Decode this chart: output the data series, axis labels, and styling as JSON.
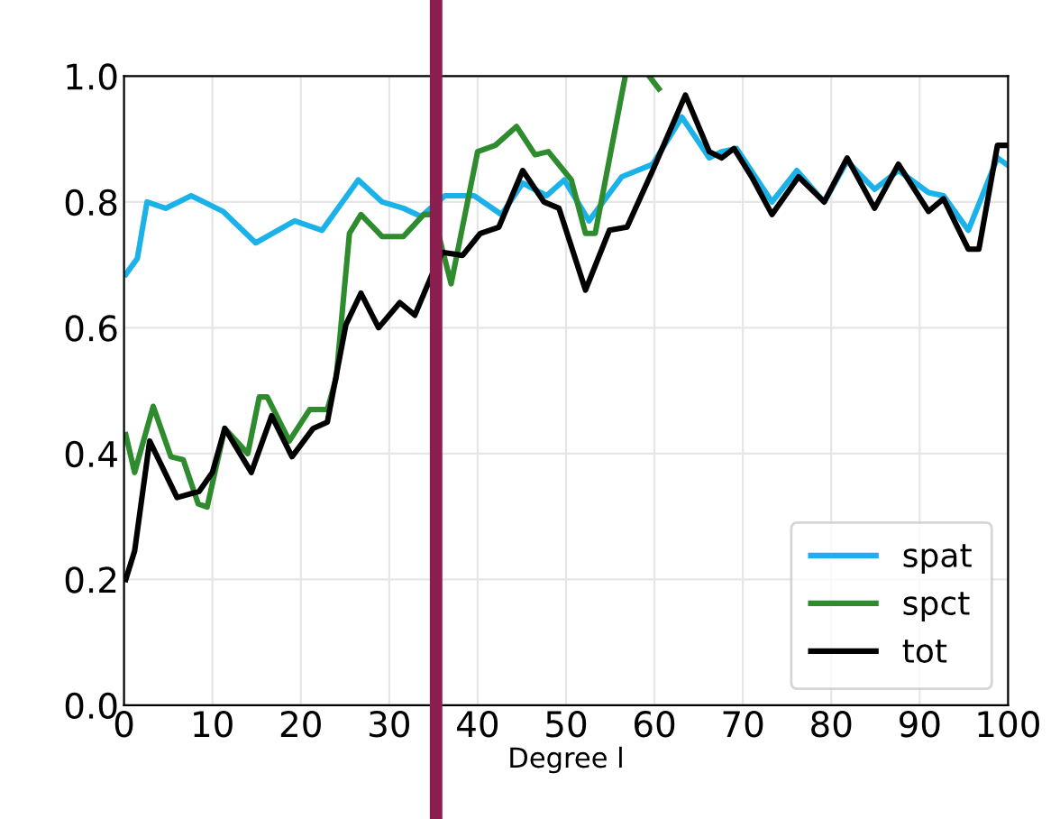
{
  "chart_data": {
    "type": "line",
    "xlabel": "Degree l",
    "xlim": [
      0,
      100
    ],
    "ylim": [
      0,
      1
    ],
    "xticks": [
      0,
      10,
      20,
      30,
      40,
      50,
      60,
      70,
      80,
      90,
      100
    ],
    "yticks": [
      {
        "value": 0,
        "label": "0.0"
      },
      {
        "value": 0.2,
        "label": "0.2"
      },
      {
        "value": 0.4,
        "label": "0.4"
      },
      {
        "value": 0.6,
        "label": "0.6"
      },
      {
        "value": 0.8,
        "label": "0.8"
      },
      {
        "value": 1,
        "label": "1.0"
      }
    ],
    "grid": true,
    "legend": "bottom right",
    "marker": "none",
    "line_style": "solid",
    "ref_lines": [
      {
        "axis": "x",
        "value": 35.3,
        "color": "#8b1e4f"
      }
    ],
    "series": [
      {
        "name": "spat",
        "color": "#1ab2e8",
        "x": [
          0.2,
          1.5,
          2.6,
          4.7,
          7.6,
          11.2,
          14.9,
          19.3,
          22.4,
          26.5,
          29.2,
          31.6,
          33.6,
          36.3,
          39.6,
          42.7,
          45.1,
          47.8,
          49.8,
          52.6,
          56.3,
          59.8,
          63.1,
          66.2,
          67.6,
          69.3,
          73.3,
          76.1,
          79.2,
          81.8,
          84.9,
          87.6,
          91,
          92.7,
          95.5,
          98.8,
          99.8
        ],
        "values": [
          0.685,
          0.71,
          0.8,
          0.79,
          0.81,
          0.785,
          0.735,
          0.77,
          0.755,
          0.835,
          0.8,
          0.79,
          0.777,
          0.81,
          0.81,
          0.78,
          0.83,
          0.81,
          0.835,
          0.77,
          0.84,
          0.86,
          0.935,
          0.87,
          0.88,
          0.885,
          0.8,
          0.85,
          0.8,
          0.865,
          0.82,
          0.85,
          0.815,
          0.81,
          0.755,
          0.87,
          0.86
        ]
      },
      {
        "name": "spct",
        "color": "#2e8b2e",
        "x": [
          0.2,
          1.2,
          3.3,
          5.3,
          6.7,
          8.4,
          9.4,
          11.4,
          14,
          15.3,
          16.2,
          18.7,
          21,
          23,
          24,
          25.5,
          26.8,
          29.2,
          31.6,
          33.9,
          35,
          37,
          40,
          42,
          44.4,
          46.5,
          48,
          50.6,
          52.2,
          53.3,
          56.7,
          58.2,
          59.4,
          60.5
        ],
        "values": [
          0.43,
          0.37,
          0.475,
          0.395,
          0.39,
          0.32,
          0.315,
          0.44,
          0.4,
          0.49,
          0.49,
          0.42,
          0.47,
          0.47,
          0.52,
          0.75,
          0.78,
          0.745,
          0.745,
          0.78,
          0.78,
          0.67,
          0.88,
          0.89,
          0.92,
          0.875,
          0.88,
          0.835,
          0.75,
          0.75,
          1.0,
          null,
          1.0,
          0.98
        ]
      },
      {
        "name": "tot",
        "color": "#000000",
        "x": [
          0.2,
          1.2,
          2.9,
          6,
          8.5,
          10,
          11.4,
          14.4,
          16.7,
          19,
          21.4,
          23,
          25.1,
          26.8,
          28.8,
          31.2,
          32.9,
          35,
          36,
          38.3,
          40.3,
          42.4,
          45.1,
          47.5,
          49.2,
          52.2,
          54.9,
          56.9,
          59.8,
          63.5,
          66.2,
          67.6,
          69,
          71,
          73.3,
          76.3,
          79.2,
          81.8,
          84.9,
          87.6,
          91,
          92.7,
          95.5,
          96.7,
          98.8,
          99.8
        ],
        "values": [
          0.2,
          0.245,
          0.42,
          0.33,
          0.34,
          0.37,
          0.44,
          0.37,
          0.46,
          0.395,
          0.44,
          0.45,
          0.605,
          0.655,
          0.6,
          0.64,
          0.62,
          0.69,
          0.72,
          0.715,
          0.75,
          0.76,
          0.85,
          0.8,
          0.79,
          0.66,
          0.755,
          0.76,
          0.85,
          0.97,
          0.88,
          0.87,
          0.885,
          0.84,
          0.78,
          0.84,
          0.8,
          0.87,
          0.79,
          0.86,
          0.785,
          0.805,
          0.725,
          0.725,
          0.89,
          0.89
        ]
      }
    ]
  }
}
